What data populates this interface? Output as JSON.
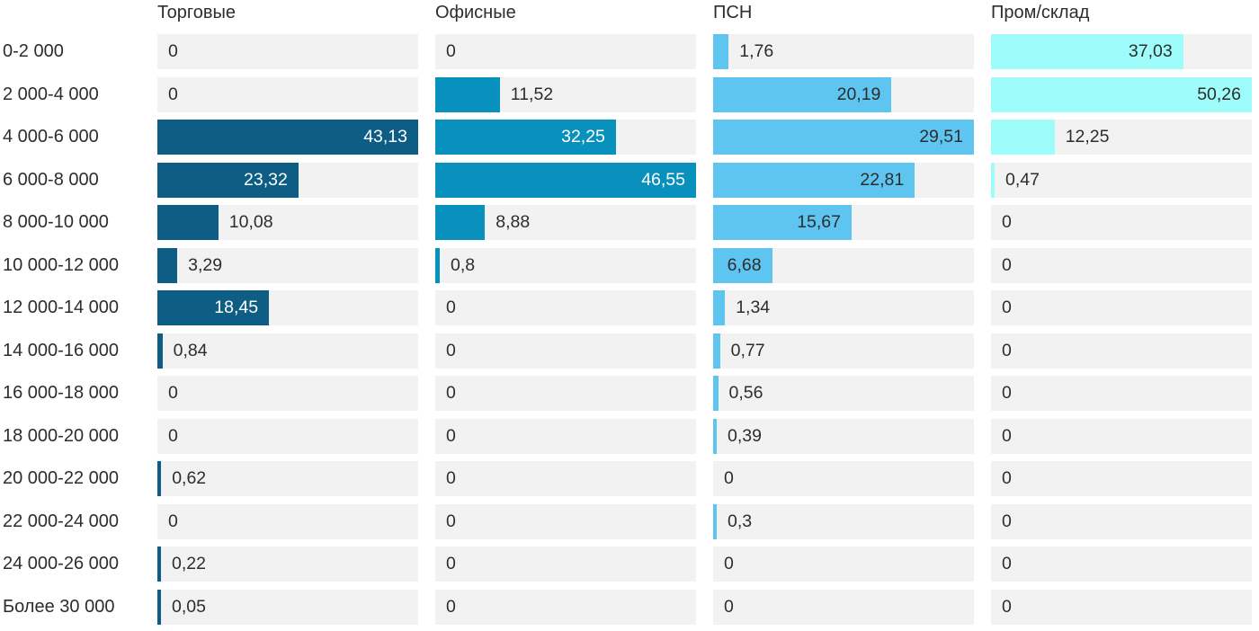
{
  "chart_data": {
    "type": "bar",
    "orientation": "horizontal",
    "title": "",
    "xlabel": "",
    "ylabel": "",
    "grid": false,
    "legend_position": "column-headers-top",
    "scaling": "per-column-max",
    "value_format": "decimal-comma",
    "track_color": "#f2f2f2",
    "outside_label_color": "#2d2d2d",
    "categories": [
      "0-2 000",
      "2 000-4 000",
      "4 000-6 000",
      "6 000-8 000",
      "8 000-10 000",
      "10 000-12 000",
      "12 000-14 000",
      "14 000-16 000",
      "16 000-18 000",
      "18 000-20 000",
      "20 000-22 000",
      "22 000-24 000",
      "24 000-26 000",
      "Более 30 000"
    ],
    "series": [
      {
        "name": "Торговые",
        "color": "#0d5d85",
        "inside_label_color": "#ffffff",
        "values": [
          0,
          0,
          43.13,
          23.32,
          10.08,
          3.29,
          18.45,
          0.84,
          0,
          0,
          0.62,
          0,
          0.22,
          0.05
        ],
        "labels": [
          "0",
          "0",
          "43,13",
          "23,32",
          "10,08",
          "3,29",
          "18,45",
          "0,84",
          "0",
          "0",
          "0,62",
          "0",
          "0,22",
          "0,05"
        ]
      },
      {
        "name": "Офисные",
        "color": "#0991bd",
        "inside_label_color": "#ffffff",
        "values": [
          0,
          11.52,
          32.25,
          46.55,
          8.88,
          0.8,
          0,
          0,
          0,
          0,
          0,
          0,
          0,
          0
        ],
        "labels": [
          "0",
          "11,52",
          "32,25",
          "46,55",
          "8,88",
          "0,8",
          "0",
          "0",
          "0",
          "0",
          "0",
          "0",
          "0",
          "0"
        ]
      },
      {
        "name": "ПСН",
        "color": "#5ec5f1",
        "inside_label_color": "#2d2d2d",
        "values": [
          1.76,
          20.19,
          29.51,
          22.81,
          15.67,
          6.68,
          1.34,
          0.77,
          0.56,
          0.39,
          0,
          0.3,
          0,
          0
        ],
        "labels": [
          "1,76",
          "20,19",
          "29,51",
          "22,81",
          "15,67",
          "6,68",
          "1,34",
          "0,77",
          "0,56",
          "0,39",
          "0",
          "0,3",
          "0",
          "0"
        ]
      },
      {
        "name": "Пром/склад",
        "color": "#9efcfa",
        "inside_label_color": "#2d2d2d",
        "values": [
          37.03,
          50.26,
          12.25,
          0.47,
          0,
          0,
          0,
          0,
          0,
          0,
          0,
          0,
          0,
          0
        ],
        "labels": [
          "37,03",
          "50,26",
          "12,25",
          "0,47",
          "0",
          "0",
          "0",
          "0",
          "0",
          "0",
          "0",
          "0",
          "0",
          "0"
        ]
      }
    ]
  }
}
